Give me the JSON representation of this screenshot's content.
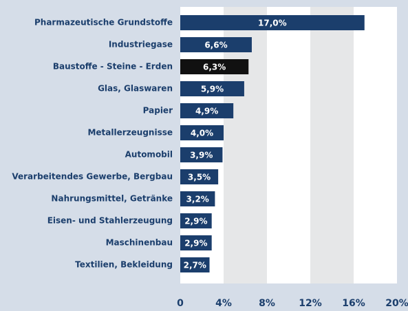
{
  "chart_data": {
    "type": "bar",
    "categories": [
      "Pharmazeutische Grundstoffe",
      "Industriegase",
      "Baustoffe - Steine - Erden",
      "Glas, Glaswaren",
      "Papier",
      "Metallerzeugnisse",
      "Automobil",
      "Verarbeitendes Gewerbe, Bergbau",
      "Nahrungsmittel, Getränke",
      "Eisen- und Stahlerzeugung",
      "Maschinenbau",
      "Textilien, Bekleidung"
    ],
    "values": [
      17.0,
      6.6,
      6.3,
      5.9,
      4.9,
      4.0,
      3.9,
      3.5,
      3.2,
      2.9,
      2.9,
      2.7
    ],
    "value_labels": [
      "17,0%",
      "6,6%",
      "6,3%",
      "5,9%",
      "4,9%",
      "4,0%",
      "3,9%",
      "3,5%",
      "3,2%",
      "2,9%",
      "2,9%",
      "2,7%"
    ],
    "colors": [
      "#1b3e6c",
      "#1b3e6c",
      "#111111",
      "#1b3e6c",
      "#1b3e6c",
      "#1b3e6c",
      "#1b3e6c",
      "#1b3e6c",
      "#1b3e6c",
      "#1b3e6c",
      "#1b3e6c",
      "#1b3e6c"
    ],
    "xlim": [
      0,
      20
    ],
    "xticks": [
      0,
      {
        "value": 4,
        "label": "4%"
      },
      {
        "value": 8,
        "label": "8%"
      },
      {
        "value": 12,
        "label": "12%"
      },
      {
        "value": 16,
        "label": "16%"
      },
      {
        "value": 20,
        "label": "20%"
      }
    ],
    "grid": true
  }
}
